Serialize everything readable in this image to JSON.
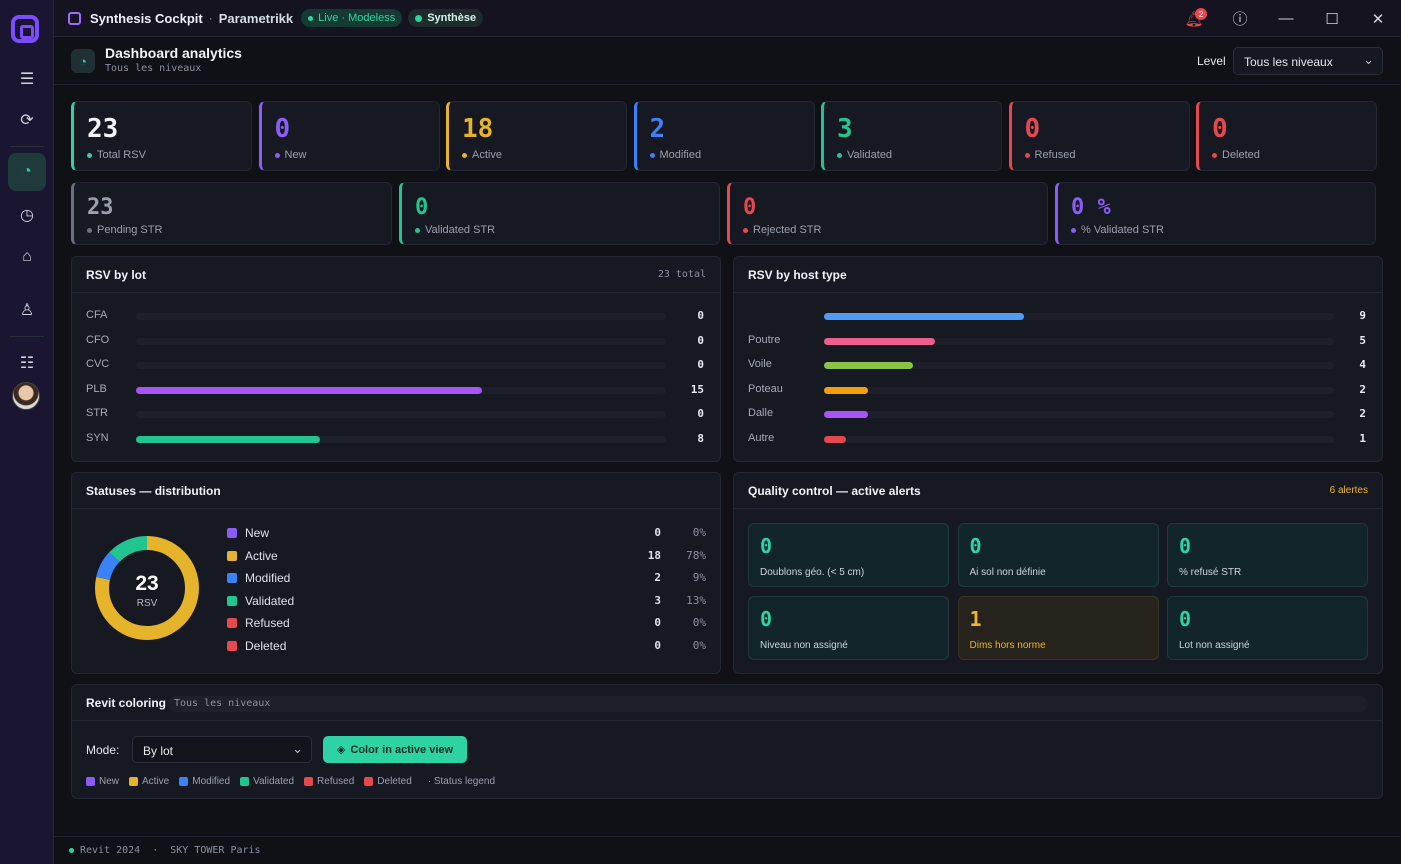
{
  "titlebar": {
    "app_name": "Synthesis Cockpit",
    "separator": "·",
    "org": "Parametrikk",
    "live_pill": "Live · Modeless",
    "synthese_pill": "Synthèse",
    "notification_count": "2"
  },
  "header": {
    "title": "Dashboard analytics",
    "subtitle": "Tous les niveaux",
    "level_label": "Level",
    "level_value": "Tous les niveaux"
  },
  "stats_row1": [
    {
      "value": "23",
      "label": "Total RSV",
      "color": "#2ed3a3",
      "value_color": "#f1f3f7"
    },
    {
      "value": "0",
      "label": "New",
      "color": "#8b5cf6",
      "value_color": "#8b5cf6"
    },
    {
      "value": "18",
      "label": "Active",
      "color": "#e5b42a",
      "value_color": "#e5b42a"
    },
    {
      "value": "2",
      "label": "Modified",
      "color": "#3b82f6",
      "value_color": "#3b82f6"
    },
    {
      "value": "3",
      "label": "Validated",
      "color": "#22c58f",
      "value_color": "#22c58f"
    },
    {
      "value": "0",
      "label": "Refused",
      "color": "#e5484d",
      "value_color": "#e5484d"
    },
    {
      "value": "0",
      "label": "Deleted",
      "color": "#e5484d",
      "value_color": "#e5484d"
    }
  ],
  "stats_row2": [
    {
      "value": "23",
      "label": "Pending STR",
      "color": "#6b7080",
      "value_color": "#9aa0ae"
    },
    {
      "value": "0",
      "label": "Validated STR",
      "color": "#22c58f",
      "value_color": "#22c58f"
    },
    {
      "value": "0",
      "label": "Rejected STR",
      "color": "#e5484d",
      "value_color": "#e5484d"
    },
    {
      "value": "0 %",
      "label": "% Validated STR",
      "color": "#8b5cf6",
      "value_color": "#8b5cf6"
    }
  ],
  "rsv_by_lot": {
    "title": "RSV by lot",
    "total": "23 total",
    "max": 23,
    "items": [
      {
        "name": "CFA",
        "value": 0,
        "color": "#8b5cf6"
      },
      {
        "name": "CFO",
        "value": 0,
        "color": "#8b5cf6"
      },
      {
        "name": "CVC",
        "value": 0,
        "color": "#8b5cf6"
      },
      {
        "name": "PLB",
        "value": 15,
        "color": "#a855f7"
      },
      {
        "name": "STR",
        "value": 0,
        "color": "#8b5cf6"
      },
      {
        "name": "SYN",
        "value": 8,
        "color": "#22c58f"
      }
    ]
  },
  "rsv_by_host": {
    "title": "RSV by host type",
    "max": 23,
    "items": [
      {
        "name": "",
        "value": 9,
        "color": "#4f9cf5"
      },
      {
        "name": "Poutre",
        "value": 5,
        "color": "#ec5f8b"
      },
      {
        "name": "Voile",
        "value": 4,
        "color": "#8bc34a"
      },
      {
        "name": "Poteau",
        "value": 2,
        "color": "#f59e0b"
      },
      {
        "name": "Dalle",
        "value": 2,
        "color": "#a855f7"
      },
      {
        "name": "Autre",
        "value": 1,
        "color": "#e5484d"
      }
    ]
  },
  "distribution": {
    "title": "Statuses — distribution",
    "center_value": "23",
    "center_label": "RSV",
    "items": [
      {
        "name": "New",
        "count": "0",
        "pct": "0%",
        "value": 0,
        "color": "#8b5cf6"
      },
      {
        "name": "Active",
        "count": "18",
        "pct": "78%",
        "value": 18,
        "color": "#e5b42a"
      },
      {
        "name": "Modified",
        "count": "2",
        "pct": "9%",
        "value": 2,
        "color": "#3b82f6"
      },
      {
        "name": "Validated",
        "count": "3",
        "pct": "13%",
        "value": 3,
        "color": "#22c58f"
      },
      {
        "name": "Refused",
        "count": "0",
        "pct": "0%",
        "value": 0,
        "color": "#e5484d"
      },
      {
        "name": "Deleted",
        "count": "0",
        "pct": "0%",
        "value": 0,
        "color": "#e5484d"
      }
    ]
  },
  "quality": {
    "title": "Quality control — active alerts",
    "count_label": "6 alertes",
    "alerts": [
      {
        "value": "0",
        "label": "Doublons géo. (< 5 cm)",
        "warn": false
      },
      {
        "value": "0",
        "label": "Ai sol non définie",
        "warn": false
      },
      {
        "value": "0",
        "label": "% refusé STR",
        "warn": false
      },
      {
        "value": "0",
        "label": "Niveau non assigné",
        "warn": false
      },
      {
        "value": "1",
        "label": "Dims hors norme",
        "warn": true
      },
      {
        "value": "0",
        "label": "Lot non assigné",
        "warn": false
      }
    ]
  },
  "revit": {
    "title": "Revit coloring",
    "level_chip": "Tous les niveaux",
    "mode_label": "Mode:",
    "mode_value": "By lot",
    "button_label": "Color in active view",
    "legend": [
      {
        "name": "New",
        "color": "#8b5cf6"
      },
      {
        "name": "Active",
        "color": "#e5b42a"
      },
      {
        "name": "Modified",
        "color": "#3b82f6"
      },
      {
        "name": "Validated",
        "color": "#22c58f"
      },
      {
        "name": "Refused",
        "color": "#e5484d"
      },
      {
        "name": "Deleted",
        "color": "#e5484d"
      }
    ],
    "legend_note": "· Status legend"
  },
  "statusbar": {
    "version": "Revit 2024",
    "separator": "·",
    "project": "SKY TOWER Paris"
  }
}
